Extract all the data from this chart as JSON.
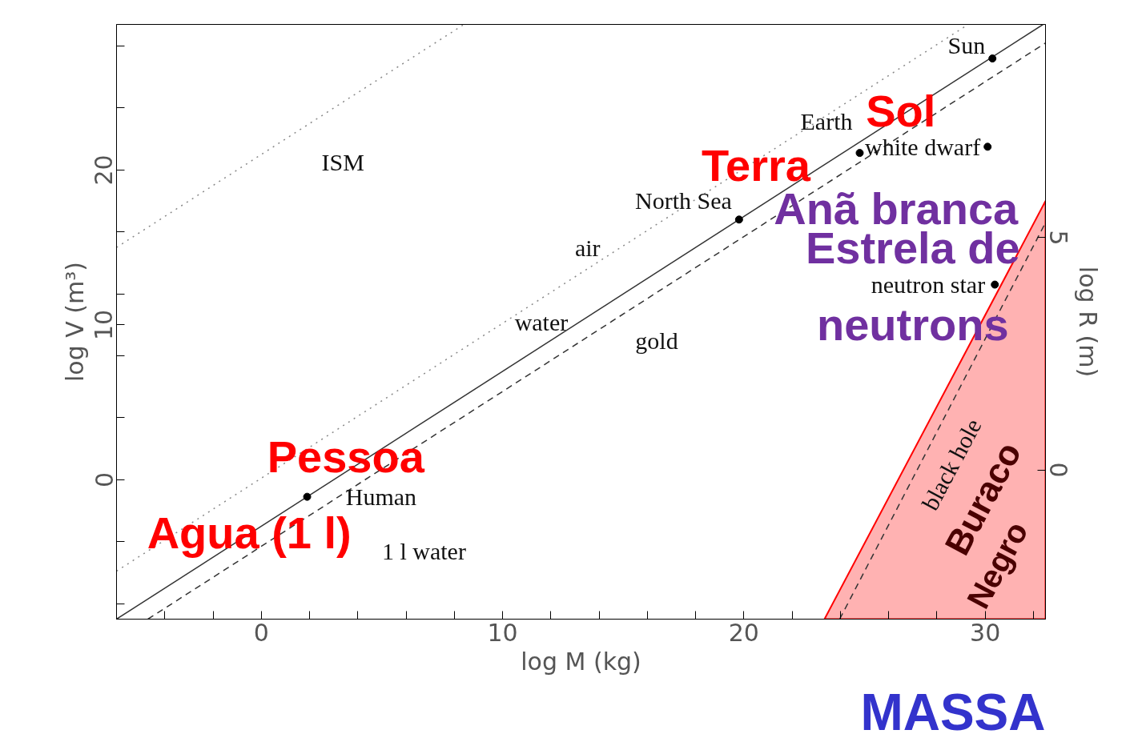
{
  "chart_data": {
    "type": "line",
    "xlabel": "log M (kg)",
    "ylabel": "log V (m³)",
    "y2label": "log R (m)",
    "xlim": [
      -6,
      32.5
    ],
    "ylim": [
      -9,
      29.4
    ],
    "y2lim": [
      -3.21,
      9.59
    ],
    "xticks": [
      {
        "value": -6,
        "label": null
      },
      {
        "value": -4,
        "label": null
      },
      {
        "value": -2,
        "label": null
      },
      0,
      {
        "value": 2,
        "label": null
      },
      {
        "value": 4,
        "label": null
      },
      {
        "value": 6,
        "label": null
      },
      {
        "value": 8,
        "label": null
      },
      10,
      {
        "value": 12,
        "label": null
      },
      {
        "value": 14,
        "label": null
      },
      {
        "value": 16,
        "label": null
      },
      {
        "value": 18,
        "label": null
      },
      20,
      {
        "value": 22,
        "label": null
      },
      {
        "value": 24,
        "label": null
      },
      {
        "value": 26,
        "label": null
      },
      {
        "value": 28,
        "label": null
      },
      30,
      {
        "value": 32,
        "label": null
      }
    ],
    "yticks": [
      {
        "value": -8,
        "label": null
      },
      {
        "value": -4,
        "label": null
      },
      0,
      {
        "value": 4,
        "label": null
      },
      {
        "value": 8,
        "label": null
      },
      10,
      {
        "value": 12,
        "label": null
      },
      {
        "value": 16,
        "label": null
      },
      20,
      {
        "value": 24,
        "label": null
      },
      {
        "value": 28,
        "label": null
      }
    ],
    "y2ticks": [
      0,
      5
    ],
    "grid": false,
    "series": [
      {
        "type": "area",
        "color": "#ff0000",
        "x": [
          23.34,
          32.5
        ],
        "values": [
          -9,
          18.0
        ]
      },
      {
        "line_style": "solid",
        "color": "#333333",
        "x": [
          -6,
          32.4
        ],
        "values": [
          -9,
          29.4
        ]
      },
      {
        "line_style": "dashed",
        "color": "#333333",
        "x": [
          -4.7,
          32.5
        ],
        "values": [
          -9,
          28.2
        ]
      },
      {
        "line_style": "dotted",
        "color": "#888888",
        "x": [
          -6,
          29.3
        ],
        "values": [
          -5.9,
          29.4
        ]
      },
      {
        "line_style": "dotted",
        "color": "#888888",
        "x": [
          -6,
          8.4
        ],
        "values": [
          15.0,
          29.4
        ]
      },
      {
        "line_style": "dashed",
        "color": "#333333",
        "x": [
          23.97,
          32.5
        ],
        "values": [
          -9,
          16.6
        ]
      },
      {
        "type": "scatter",
        "marker": "circle",
        "color": "#000000",
        "x": [
          1.9,
          19.8,
          24.8,
          30.3,
          30.1,
          30.4
        ],
        "values": [
          -1.1,
          16.8,
          21.1,
          27.2,
          21.5,
          12.6
        ]
      }
    ],
    "annotations": [
      "ISM",
      "air",
      "water",
      "gold",
      "North Sea",
      "Earth",
      "Sun",
      "white dwarf",
      "neutron star",
      "Human",
      "1 l water",
      "black hole",
      "Sol",
      "Terra",
      "Anã branca",
      "Estrela de",
      "neutrons",
      "Pessoa",
      "Agua (1 l)",
      "Buraco",
      "Negro",
      "MASSA"
    ]
  }
}
